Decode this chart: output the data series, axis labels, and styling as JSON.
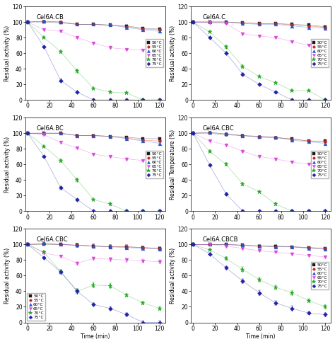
{
  "subplots": [
    {
      "title": "Cel6A.CB",
      "ylabel": "Residual activity (%)",
      "series": {
        "50": [
          100,
          100,
          99,
          97,
          97,
          96,
          95,
          92,
          91
        ],
        "55": [
          100,
          101,
          100,
          97,
          97,
          96,
          94,
          91,
          90
        ],
        "60": [
          100,
          101,
          100,
          97,
          97,
          96,
          93,
          90,
          88
        ],
        "65": [
          100,
          90,
          88,
          80,
          73,
          67,
          65,
          64,
          63
        ],
        "70": [
          100,
          80,
          62,
          37,
          15,
          10,
          9,
          0,
          0
        ],
        "75": [
          100,
          68,
          25,
          10,
          0,
          0,
          0,
          0,
          0
        ]
      },
      "errors": {
        "50": [
          1,
          1,
          1,
          1,
          1,
          1,
          1,
          1,
          1
        ],
        "55": [
          1,
          1,
          1,
          1,
          1,
          1,
          1,
          1,
          1
        ],
        "60": [
          1,
          1,
          1,
          1,
          1,
          1,
          1,
          1,
          1
        ],
        "65": [
          1,
          1,
          1,
          1,
          1,
          1,
          1,
          1,
          1
        ],
        "70": [
          1,
          1,
          2,
          2,
          1,
          1,
          1,
          1,
          1
        ],
        "75": [
          1,
          1,
          2,
          1,
          1,
          1,
          1,
          1,
          1
        ]
      }
    },
    {
      "title": "Cel6A.C",
      "ylabel": "Residual activity (%)",
      "series": {
        "50": [
          100,
          100,
          100,
          99,
          98,
          98,
          97,
          96,
          94
        ],
        "55": [
          100,
          100,
          100,
          99,
          98,
          98,
          96,
          95,
          93
        ],
        "60": [
          100,
          100,
          100,
          98,
          97,
          97,
          95,
          93,
          92
        ],
        "65": [
          100,
          99,
          98,
          85,
          82,
          80,
          75,
          70,
          71
        ],
        "70": [
          100,
          87,
          68,
          43,
          30,
          22,
          12,
          12,
          0
        ],
        "75": [
          100,
          80,
          60,
          33,
          20,
          10,
          0,
          0,
          0
        ]
      },
      "errors": {
        "50": [
          1,
          1,
          1,
          1,
          1,
          1,
          1,
          1,
          1
        ],
        "55": [
          1,
          1,
          1,
          1,
          1,
          1,
          1,
          1,
          1
        ],
        "60": [
          1,
          1,
          1,
          1,
          1,
          1,
          1,
          1,
          1
        ],
        "65": [
          1,
          1,
          1,
          1,
          1,
          1,
          1,
          1,
          1
        ],
        "70": [
          1,
          1,
          2,
          2,
          1,
          1,
          1,
          1,
          1
        ],
        "75": [
          1,
          1,
          2,
          2,
          1,
          1,
          1,
          1,
          1
        ]
      }
    },
    {
      "title": "Cel6A.BC",
      "ylabel": "Residual activity (%)",
      "series": {
        "50": [
          100,
          100,
          100,
          97,
          97,
          96,
          95,
          93,
          93
        ],
        "55": [
          100,
          100,
          100,
          97,
          97,
          96,
          94,
          91,
          90
        ],
        "60": [
          100,
          100,
          100,
          97,
          97,
          96,
          93,
          90,
          87
        ],
        "65": [
          100,
          98,
          88,
          81,
          73,
          70,
          67,
          65,
          64
        ],
        "70": [
          100,
          83,
          65,
          40,
          15,
          9,
          0,
          0,
          0
        ],
        "75": [
          100,
          70,
          30,
          15,
          0,
          0,
          0,
          0,
          0
        ]
      },
      "errors": {
        "50": [
          1,
          1,
          1,
          1,
          1,
          1,
          1,
          1,
          1
        ],
        "55": [
          1,
          1,
          1,
          1,
          1,
          1,
          1,
          1,
          1
        ],
        "60": [
          1,
          1,
          1,
          1,
          1,
          1,
          1,
          1,
          1
        ],
        "65": [
          1,
          1,
          1,
          1,
          1,
          1,
          1,
          1,
          1
        ],
        "70": [
          1,
          1,
          2,
          2,
          1,
          1,
          1,
          1,
          1
        ],
        "75": [
          1,
          1,
          2,
          1,
          1,
          1,
          1,
          1,
          1
        ]
      }
    },
    {
      "title": "Cel6A.CBC",
      "ylabel": "Residual Temperature (%)",
      "series": {
        "50": [
          100,
          100,
          98,
          97,
          95,
          94,
          93,
          90,
          90
        ],
        "55": [
          100,
          101,
          99,
          97,
          96,
          95,
          92,
          90,
          89
        ],
        "60": [
          100,
          101,
          99,
          97,
          96,
          95,
          91,
          89,
          87
        ],
        "65": [
          100,
          90,
          85,
          77,
          70,
          67,
          63,
          60,
          58
        ],
        "70": [
          100,
          77,
          60,
          35,
          25,
          9,
          0,
          0,
          0
        ],
        "75": [
          100,
          59,
          22,
          0,
          0,
          0,
          0,
          0,
          0
        ]
      },
      "errors": {
        "50": [
          1,
          1,
          1,
          1,
          1,
          1,
          1,
          1,
          1
        ],
        "55": [
          1,
          1,
          1,
          1,
          1,
          1,
          1,
          1,
          1
        ],
        "60": [
          1,
          1,
          1,
          1,
          1,
          1,
          1,
          1,
          1
        ],
        "65": [
          1,
          1,
          1,
          1,
          1,
          1,
          1,
          1,
          1
        ],
        "70": [
          1,
          1,
          2,
          2,
          1,
          1,
          1,
          1,
          1
        ],
        "75": [
          1,
          1,
          2,
          1,
          1,
          1,
          1,
          1,
          1
        ]
      }
    },
    {
      "title": "Cel6A.CBC",
      "ylabel": "Residual activity (%)",
      "series": {
        "50": [
          100,
          100,
          100,
          99,
          98,
          97,
          97,
          96,
          95
        ],
        "55": [
          100,
          101,
          100,
          99,
          98,
          97,
          97,
          96,
          95
        ],
        "60": [
          100,
          102,
          100,
          99,
          98,
          97,
          96,
          95,
          94
        ],
        "65": [
          100,
          89,
          85,
          76,
          82,
          81,
          80,
          79,
          78
        ],
        "70": [
          100,
          90,
          65,
          40,
          48,
          47,
          35,
          25,
          18
        ],
        "75": [
          100,
          83,
          65,
          40,
          23,
          18,
          10,
          0,
          0
        ]
      },
      "errors": {
        "50": [
          1,
          1,
          1,
          2,
          2,
          2,
          2,
          2,
          2
        ],
        "55": [
          1,
          1,
          1,
          2,
          2,
          2,
          2,
          2,
          2
        ],
        "60": [
          1,
          1,
          1,
          2,
          2,
          2,
          2,
          2,
          2
        ],
        "65": [
          1,
          1,
          1,
          2,
          2,
          2,
          2,
          2,
          2
        ],
        "70": [
          1,
          1,
          3,
          3,
          3,
          3,
          2,
          2,
          2
        ],
        "75": [
          1,
          1,
          3,
          3,
          2,
          2,
          2,
          2,
          2
        ]
      }
    },
    {
      "title": "Cel6A.CBCB",
      "ylabel": "Residual activity (%)",
      "series": {
        "50": [
          100,
          100,
          100,
          99,
          98,
          98,
          97,
          96,
          95
        ],
        "55": [
          100,
          100,
          100,
          99,
          98,
          97,
          97,
          96,
          95
        ],
        "60": [
          100,
          100,
          100,
          99,
          98,
          97,
          97,
          95,
          94
        ],
        "65": [
          100,
          100,
          98,
          95,
          92,
          90,
          88,
          86,
          84
        ],
        "70": [
          100,
          93,
          82,
          68,
          55,
          45,
          38,
          28,
          20
        ],
        "75": [
          100,
          88,
          70,
          53,
          38,
          25,
          18,
          12,
          10
        ]
      },
      "errors": {
        "50": [
          1,
          1,
          1,
          1,
          1,
          1,
          1,
          1,
          1
        ],
        "55": [
          1,
          1,
          1,
          1,
          1,
          1,
          1,
          1,
          1
        ],
        "60": [
          1,
          1,
          1,
          1,
          1,
          1,
          1,
          1,
          1
        ],
        "65": [
          1,
          1,
          1,
          1,
          1,
          1,
          1,
          1,
          1
        ],
        "70": [
          1,
          1,
          2,
          3,
          3,
          3,
          3,
          2,
          2
        ],
        "75": [
          1,
          1,
          2,
          3,
          3,
          3,
          3,
          2,
          2
        ]
      }
    }
  ],
  "time_points": [
    0,
    15,
    30,
    45,
    60,
    75,
    90,
    105,
    120
  ],
  "colors": {
    "50": "#1a1a1a",
    "55": "#cc2222",
    "60": "#2255cc",
    "65": "#dd44dd",
    "70": "#22aa22",
    "75": "#2222aa"
  },
  "markers": {
    "50": "s",
    "55": "o",
    "60": "^",
    "65": "v",
    "70": "*",
    "75": "D"
  },
  "marker_sizes": {
    "50": 3.0,
    "55": 3.0,
    "60": 3.5,
    "65": 3.5,
    "70": 4.5,
    "75": 3.0
  },
  "ylim": [
    0,
    120
  ],
  "yticks": [
    0,
    20,
    40,
    60,
    80,
    100,
    120
  ],
  "xlim": [
    -2,
    125
  ],
  "xticks": [
    0,
    20,
    40,
    60,
    80,
    100,
    120
  ],
  "legend_temps": [
    "50°C",
    "55°C",
    "60°C",
    "65°C",
    "70°C",
    "75°C"
  ],
  "legend_keys": [
    "50",
    "55",
    "60",
    "65",
    "70",
    "75"
  ],
  "legend_positions": [
    "center right",
    "center right",
    "center right",
    "center right",
    "lower left",
    "center right"
  ],
  "xlabel_rows": [
    false,
    false,
    false,
    false,
    true,
    true
  ]
}
